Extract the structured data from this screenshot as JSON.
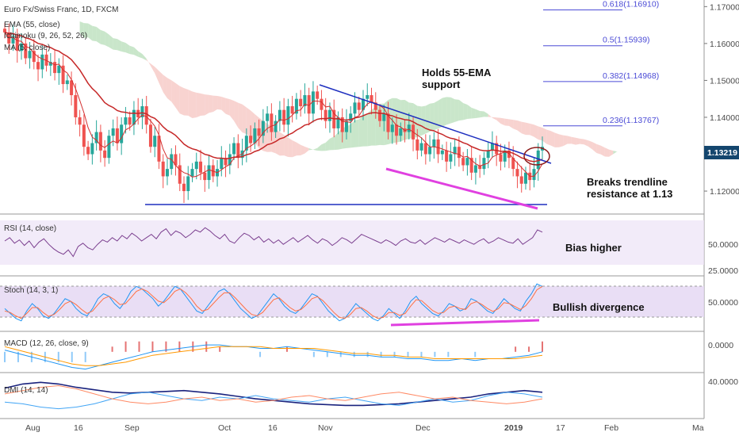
{
  "colors": {
    "bull": "#26a69a",
    "bear": "#ef5350",
    "ema": "#c62828",
    "trend": "#1e2fbf",
    "divergence": "#e040e0",
    "cloud_bull": "#a5d6a7",
    "cloud_bear": "#f4b6b0",
    "rsi": "#7b3f8f",
    "stoch_k": "#2196f3",
    "stoch_d": "#ff7043",
    "macd": "#2196f3",
    "signal": "#ff9800",
    "dmi_adx": "#1a237e",
    "dmi_plus": "#42a5f5",
    "dmi_minus": "#ff8a65",
    "fib": "#4b4bd6"
  },
  "panels": {
    "price": {
      "title": "Euro Fx/Swiss Franc, 1D, FXCM",
      "legend": [
        "EMA (55, close)",
        "Ichimoku (9, 26, 52, 26)",
        "MA (5, close)"
      ],
      "price_badge": "1.13219"
    },
    "rsi": {
      "title": "RSI (14, close)",
      "ticks": [
        "50.0000",
        "25.0000"
      ],
      "note": "Bias higher"
    },
    "stoch": {
      "title": "Stoch (14, 3, 1)",
      "ticks": [
        "50.0000"
      ],
      "note": "Bullish divergence"
    },
    "macd": {
      "title": "MACD (12, 26, close, 9)",
      "ticks": [
        "0.0000"
      ]
    },
    "dmi": {
      "title": "DMI (14, 14)",
      "ticks": [
        "40.0000"
      ]
    }
  },
  "annotations": {
    "holds_ema": [
      "Holds 55-EMA",
      "support"
    ],
    "breaks_trendline": [
      "Breaks trendline",
      "resistance at 1.13"
    ]
  },
  "x_axis_labels": [
    "Aug",
    "16",
    "Sep",
    "Oct",
    "16",
    "Nov",
    "Dec",
    "2019",
    "17",
    "Feb",
    "Ma"
  ],
  "chart_data": [
    {
      "type": "candlestick",
      "title": "Euro Fx/Swiss Franc, 1D, FXCM",
      "y_ticks": [
        "1.17000",
        "1.16000",
        "1.15000",
        "1.14000",
        "1.13000",
        "1.12000"
      ],
      "ylim": [
        1.1155,
        1.1705
      ],
      "support_level": 1.118,
      "fib_levels": [
        {
          "label": "0.618(1.16910)",
          "value": 1.1691
        },
        {
          "label": "0.5(1.15939)",
          "value": 1.15939
        },
        {
          "label": "0.382(1.14968)",
          "value": 1.14968
        },
        {
          "label": "0.236(1.13767)",
          "value": 1.13767
        }
      ],
      "last_price": 1.13219,
      "closes": [
        1.163,
        1.16,
        1.162,
        1.158,
        1.16,
        1.156,
        1.158,
        1.155,
        1.153,
        1.157,
        1.154,
        1.155,
        1.152,
        1.154,
        1.149,
        1.15,
        1.146,
        1.14,
        1.138,
        1.132,
        1.13,
        1.133,
        1.136,
        1.131,
        1.129,
        1.135,
        1.137,
        1.133,
        1.138,
        1.14,
        1.138,
        1.142,
        1.14,
        1.143,
        1.138,
        1.132,
        1.135,
        1.128,
        1.124,
        1.126,
        1.13,
        1.127,
        1.122,
        1.12,
        1.124,
        1.126,
        1.128,
        1.125,
        1.123,
        1.127,
        1.124,
        1.126,
        1.129,
        1.127,
        1.13,
        1.133,
        1.129,
        1.131,
        1.135,
        1.133,
        1.137,
        1.135,
        1.139,
        1.141,
        1.136,
        1.139,
        1.142,
        1.138,
        1.143,
        1.141,
        1.145,
        1.143,
        1.146,
        1.141,
        1.147,
        1.145,
        1.142,
        1.139,
        1.142,
        1.137,
        1.14,
        1.136,
        1.139,
        1.141,
        1.144,
        1.142,
        1.145,
        1.146,
        1.144,
        1.142,
        1.139,
        1.141,
        1.136,
        1.138,
        1.135,
        1.137,
        1.136,
        1.138,
        1.134,
        1.131,
        1.133,
        1.13,
        1.132,
        1.134,
        1.13,
        1.131,
        1.128,
        1.13,
        1.132,
        1.129,
        1.127,
        1.129,
        1.125,
        1.127,
        1.126,
        1.129,
        1.131,
        1.133,
        1.13,
        1.128,
        1.131,
        1.129,
        1.126,
        1.124,
        1.122,
        1.125,
        1.123,
        1.126,
        1.131,
        1.132
      ]
    },
    {
      "type": "line",
      "title": "RSI (14, close)",
      "ylim": [
        20,
        70
      ],
      "bands": [
        30,
        70
      ],
      "values": [
        50,
        53,
        48,
        51,
        46,
        50,
        44,
        49,
        52,
        47,
        43,
        40,
        38,
        42,
        36,
        45,
        48,
        44,
        42,
        47,
        51,
        49,
        53,
        50,
        55,
        52,
        57,
        54,
        50,
        53,
        56,
        52,
        58,
        61,
        55,
        59,
        57,
        53,
        56,
        60,
        58,
        62,
        59,
        55,
        52,
        56,
        50,
        48,
        53,
        57,
        55,
        51,
        54,
        49,
        52,
        48,
        51,
        47,
        50,
        53,
        49,
        52,
        55,
        51,
        48,
        52,
        50,
        46,
        49,
        53,
        51,
        48,
        52,
        56,
        54,
        52,
        50,
        48,
        51,
        49,
        46,
        50,
        52,
        49,
        48,
        51,
        47,
        50,
        53,
        51,
        49,
        52,
        50,
        48,
        51,
        49,
        47,
        50,
        52,
        48,
        50,
        53,
        51,
        49,
        48,
        52,
        47,
        50,
        53,
        60,
        58
      ]
    },
    {
      "type": "line",
      "title": "Stoch (14, 3, 1)",
      "ylim": [
        0,
        100
      ],
      "bands": [
        20,
        80
      ],
      "series": [
        {
          "values": [
            40,
            30,
            20,
            15,
            35,
            50,
            40,
            25,
            20,
            30,
            45,
            60,
            55,
            40,
            30,
            25,
            40,
            60,
            70,
            65,
            50,
            40,
            55,
            75,
            85,
            80,
            70,
            60,
            45,
            55,
            70,
            85,
            80,
            65,
            50,
            35,
            30,
            45,
            60,
            75,
            80,
            70,
            55,
            40,
            30,
            20,
            25,
            40,
            55,
            70,
            60,
            45,
            35,
            30,
            40,
            55,
            70,
            65,
            50,
            35,
            25,
            15,
            20,
            35,
            50,
            40,
            30,
            20,
            15,
            25,
            40,
            30,
            20,
            35,
            55,
            65,
            50,
            40,
            30,
            25,
            35,
            50,
            45,
            35,
            40,
            60,
            55,
            45,
            35,
            30,
            45,
            60,
            50,
            40,
            35,
            55,
            70,
            90,
            85
          ]
        },
        {
          "values": [
            35,
            32,
            25,
            20,
            30,
            42,
            42,
            32,
            24,
            28,
            38,
            50,
            55,
            48,
            38,
            30,
            35,
            48,
            60,
            65,
            58,
            48,
            50,
            62,
            75,
            80,
            75,
            65,
            55,
            52,
            62,
            75,
            80,
            72,
            60,
            45,
            35,
            38,
            50,
            62,
            72,
            72,
            62,
            50,
            38,
            28,
            25,
            32,
            45,
            58,
            62,
            52,
            42,
            35,
            38,
            48,
            60,
            64,
            56,
            44,
            32,
            22,
            20,
            28,
            40,
            42,
            35,
            26,
            20,
            22,
            32,
            32,
            26,
            30,
            45,
            58,
            56,
            46,
            36,
            30,
            32,
            42,
            45,
            40,
            38,
            50,
            54,
            48,
            40,
            34,
            40,
            52,
            50,
            44,
            38,
            46,
            60,
            78,
            85
          ]
        }
      ]
    },
    {
      "type": "line",
      "title": "MACD (12, 26, close, 9)",
      "ylim": [
        -0.012,
        0.01
      ],
      "series": [
        {
          "values": [
            0.001,
            -0.001,
            -0.003,
            -0.005,
            -0.007,
            -0.009,
            -0.01,
            -0.008,
            -0.006,
            -0.004,
            -0.002,
            0.0,
            0.001,
            0.002,
            0.003,
            0.004,
            0.004,
            0.003,
            0.003,
            0.002,
            0.002,
            0.003,
            0.002,
            0.001,
            0.0,
            -0.001,
            -0.002,
            -0.002,
            -0.003,
            -0.003,
            -0.004,
            -0.004,
            -0.005,
            -0.005,
            -0.004,
            -0.005,
            -0.004,
            -0.004,
            -0.003,
            -0.002,
            0.0
          ]
        },
        {
          "values": [
            0.003,
            0.001,
            -0.001,
            -0.003,
            -0.005,
            -0.007,
            -0.008,
            -0.008,
            -0.007,
            -0.006,
            -0.004,
            -0.002,
            -0.001,
            0.0,
            0.001,
            0.002,
            0.003,
            0.003,
            0.003,
            0.003,
            0.002,
            0.002,
            0.002,
            0.002,
            0.001,
            0.0,
            -0.001,
            -0.001,
            -0.002,
            -0.002,
            -0.003,
            -0.003,
            -0.004,
            -0.004,
            -0.004,
            -0.004,
            -0.004,
            -0.004,
            -0.004,
            -0.003,
            -0.002
          ]
        }
      ]
    },
    {
      "type": "line",
      "title": "DMI (14, 14)",
      "ylim": [
        0,
        50
      ],
      "series": [
        {
          "values": [
            35,
            40,
            42,
            40,
            36,
            33,
            30,
            29,
            30,
            31,
            32,
            30,
            28,
            25,
            22,
            20,
            18,
            16,
            15,
            14,
            14,
            15,
            16,
            18,
            20,
            22,
            24,
            28,
            30,
            32,
            30
          ]
        },
        {
          "values": [
            18,
            16,
            12,
            10,
            12,
            16,
            22,
            28,
            30,
            26,
            22,
            20,
            24,
            22,
            26,
            22,
            20,
            18,
            22,
            24,
            20,
            16,
            14,
            18,
            22,
            18,
            20,
            26,
            30,
            28,
            24
          ]
        },
        {
          "values": [
            28,
            32,
            36,
            38,
            34,
            28,
            22,
            18,
            16,
            18,
            22,
            24,
            20,
            22,
            18,
            20,
            24,
            26,
            22,
            20,
            24,
            28,
            30,
            26,
            22,
            24,
            20,
            18,
            16,
            18,
            22
          ]
        }
      ]
    }
  ]
}
